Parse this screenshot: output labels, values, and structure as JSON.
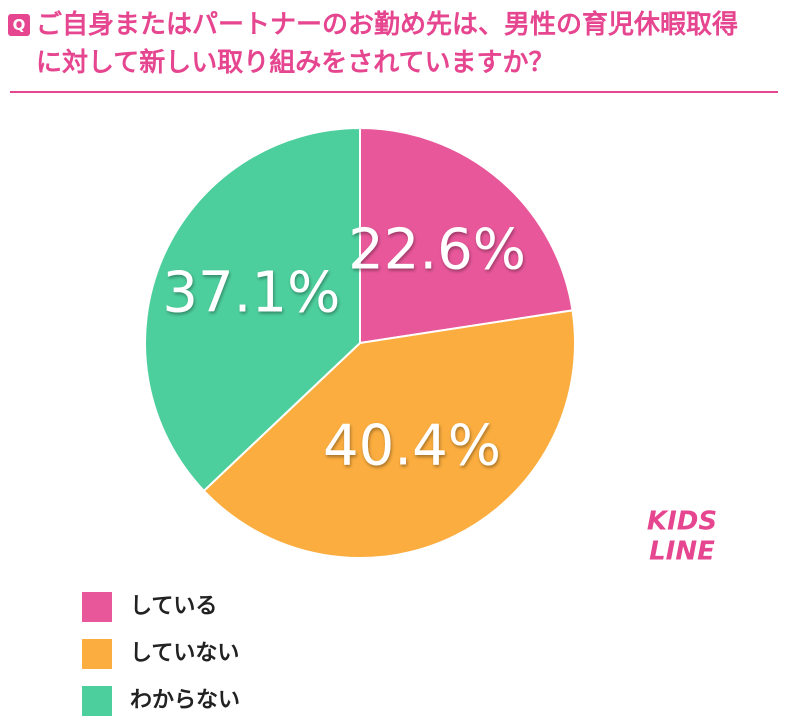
{
  "chart_data": {
    "type": "pie",
    "badge": "Q",
    "title": "ご自身またはパートナーのお勤め先は、男性の育児休暇取得に対して新しい取り組みをされていますか？",
    "categories": [
      "している",
      "していない",
      "わからない"
    ],
    "values": [
      22.6,
      40.4,
      37.1
    ],
    "value_labels": [
      "22.6%",
      "40.4%",
      "37.1%"
    ],
    "colors": [
      "#e8579a",
      "#fbad3f",
      "#4dcf9d"
    ],
    "logo": [
      "KIDS",
      "LINE"
    ]
  }
}
